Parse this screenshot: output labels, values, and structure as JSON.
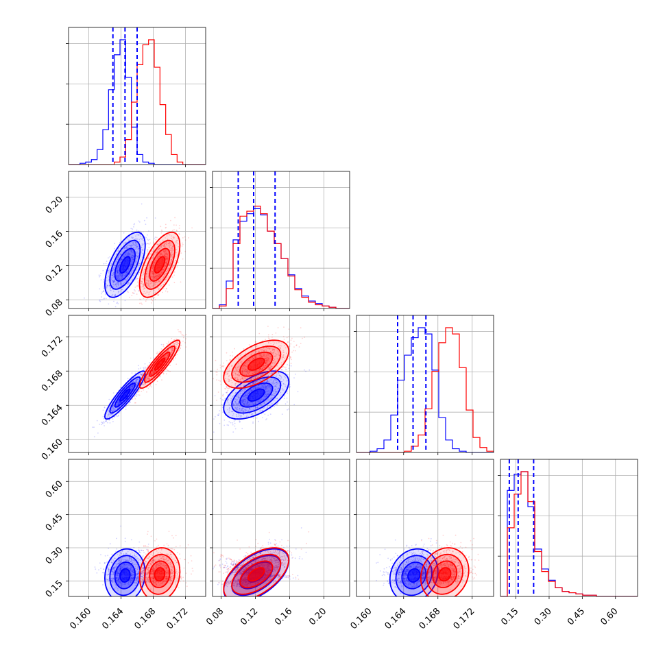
{
  "chart_data": {
    "type": "corner",
    "grid": true,
    "colors": {
      "blue": "#0000ff",
      "red": "#ff0000"
    },
    "parameters": [
      {
        "range": [
          0.1575,
          0.1745
        ],
        "ticks": [
          0.16,
          0.164,
          0.168,
          0.172
        ],
        "tick_labels": [
          "0.160",
          "0.164",
          "0.168",
          "0.172"
        ]
      },
      {
        "range": [
          0.07,
          0.23
        ],
        "ticks": [
          0.08,
          0.12,
          0.16,
          0.2
        ],
        "tick_labels": [
          "0.08",
          "0.12",
          "0.16",
          "0.20"
        ]
      },
      {
        "range": [
          0.1585,
          0.1745
        ],
        "ticks": [
          0.16,
          0.164,
          0.168,
          0.172
        ],
        "tick_labels": [
          "0.160",
          "0.164",
          "0.168",
          "0.172"
        ]
      },
      {
        "range": [
          0.08,
          0.7
        ],
        "ticks": [
          0.15,
          0.3,
          0.45,
          0.6
        ],
        "tick_labels": [
          "0.15",
          "0.30",
          "0.45",
          "0.60"
        ]
      }
    ],
    "series": [
      {
        "color": "#0000ff",
        "mean": [
          0.1645,
          0.121,
          0.1652,
          0.175
        ],
        "sd": [
          0.00125,
          0.019,
          0.0014,
          0.06
        ],
        "corr": [
          [
            1,
            0.6,
            0.9,
            0.1
          ],
          [
            0.6,
            1,
            0.55,
            0.55
          ],
          [
            0.9,
            0.55,
            1,
            0.15
          ],
          [
            0.1,
            0.55,
            0.15,
            1
          ]
        ],
        "quantile_lines": [
          [
            0.163,
            0.1645,
            0.166
          ],
          [
            0.1,
            0.118,
            0.143
          ],
          [
            0.1633,
            0.1651,
            0.1666
          ],
          [
            0.12,
            0.16,
            0.23
          ]
        ],
        "histograms": [
          [
            0.1575,
            0.1745,
            [
              0,
              0,
              1,
              2,
              4,
              12,
              28,
              60,
              88,
              100,
              70,
              30,
              8,
              2,
              1,
              0,
              0,
              0,
              0,
              0,
              0,
              0,
              0,
              0
            ]
          ],
          [
            0.07,
            0.23,
            [
              0,
              3,
              22,
              55,
              70,
              76,
              80,
              75,
              62,
              52,
              40,
              27,
              16,
              10,
              6,
              4,
              2,
              1,
              0,
              0
            ]
          ],
          [
            0.1585,
            0.1745,
            [
              0,
              0,
              1,
              3,
              10,
              30,
              58,
              78,
              92,
              100,
              95,
              66,
              28,
              10,
              3,
              1,
              0,
              0,
              0,
              0
            ]
          ],
          [
            0.08,
            0.7,
            [
              0,
              85,
              98,
              100,
              72,
              38,
              22,
              13,
              7,
              4,
              3,
              2,
              1,
              1,
              0,
              0,
              0,
              0,
              0,
              0
            ]
          ]
        ]
      },
      {
        "color": "#ff0000",
        "mean": [
          0.1688,
          0.121,
          0.1688,
          0.18
        ],
        "sd": [
          0.00125,
          0.019,
          0.0014,
          0.06
        ],
        "corr": [
          [
            1,
            0.6,
            0.9,
            0.1
          ],
          [
            0.6,
            1,
            0.55,
            0.55
          ],
          [
            0.9,
            0.55,
            1,
            0.15
          ],
          [
            0.1,
            0.55,
            0.15,
            1
          ]
        ],
        "quantile_lines": [],
        "histograms": [
          [
            0.1575,
            0.1745,
            [
              0,
              0,
              0,
              0,
              0,
              0,
              0,
              0,
              2,
              6,
              20,
              50,
              80,
              96,
              100,
              78,
              48,
              24,
              8,
              2,
              0,
              0,
              0,
              0
            ]
          ],
          [
            0.07,
            0.23,
            [
              0,
              2,
              16,
              52,
              74,
              78,
              82,
              76,
              62,
              52,
              40,
              26,
              15,
              9,
              5,
              3,
              2,
              1,
              0,
              0
            ]
          ],
          [
            0.1585,
            0.1745,
            [
              0,
              0,
              0,
              0,
              0,
              0,
              0,
              1,
              5,
              14,
              35,
              65,
              88,
              100,
              95,
              68,
              34,
              12,
              4,
              1
            ]
          ],
          [
            0.08,
            0.7,
            [
              0,
              55,
              82,
              100,
              76,
              36,
              20,
              12,
              7,
              4,
              3,
              2,
              1,
              1,
              0,
              0,
              0,
              0,
              0,
              0
            ]
          ]
        ]
      }
    ]
  }
}
